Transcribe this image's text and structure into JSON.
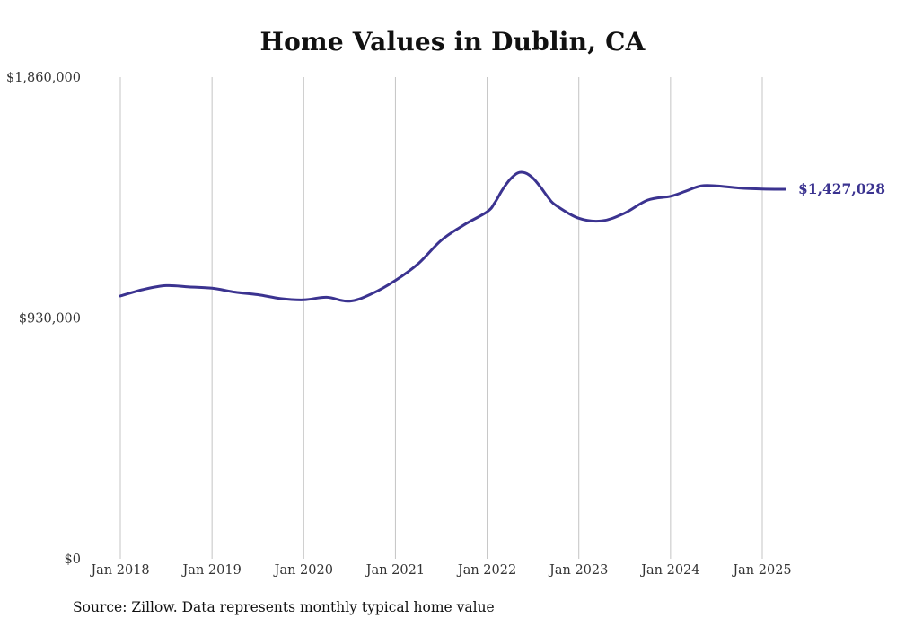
{
  "source_note": "Source: Zillow. Data represents monthly typical home value",
  "chart_data": {
    "type": "line",
    "title": "Home Values in Dublin, CA",
    "xlabel": "",
    "ylabel": "",
    "ylim": [
      0,
      1860000
    ],
    "y_ticks": [
      {
        "value": 0,
        "label": "$0"
      },
      {
        "value": 930000,
        "label": "$930,000"
      },
      {
        "value": 1860000,
        "label": "$1,860,000"
      }
    ],
    "x_ticks": [
      {
        "date": "2018-01",
        "label": "Jan 2018"
      },
      {
        "date": "2019-01",
        "label": "Jan 2019"
      },
      {
        "date": "2020-01",
        "label": "Jan 2020"
      },
      {
        "date": "2021-01",
        "label": "Jan 2021"
      },
      {
        "date": "2022-01",
        "label": "Jan 2022"
      },
      {
        "date": "2023-01",
        "label": "Jan 2023"
      },
      {
        "date": "2024-01",
        "label": "Jan 2024"
      },
      {
        "date": "2025-01",
        "label": "Jan 2025"
      }
    ],
    "grid": "vertical",
    "line_color": "#3b3390",
    "end_label": "$1,427,028",
    "series": [
      {
        "x": [
          "2018-01",
          "2018-04",
          "2018-07",
          "2018-10",
          "2019-01",
          "2019-04",
          "2019-07",
          "2019-10",
          "2020-01",
          "2020-04",
          "2020-07",
          "2020-10",
          "2021-01",
          "2021-04",
          "2021-07",
          "2021-10",
          "2022-01",
          "2022-02",
          "2022-03",
          "2022-04",
          "2022-05",
          "2022-06",
          "2022-07",
          "2022-08",
          "2022-09",
          "2022-10",
          "2023-01",
          "2023-04",
          "2023-07",
          "2023-10",
          "2024-01",
          "2024-03",
          "2024-05",
          "2024-07",
          "2024-10",
          "2025-01",
          "2025-04"
        ],
        "values": [
          1015000,
          1040000,
          1055000,
          1050000,
          1045000,
          1030000,
          1020000,
          1005000,
          1000000,
          1010000,
          995000,
          1025000,
          1075000,
          1140000,
          1230000,
          1290000,
          1340000,
          1375000,
          1425000,
          1465000,
          1490000,
          1490000,
          1470000,
          1435000,
          1395000,
          1365000,
          1315000,
          1305000,
          1335000,
          1385000,
          1400000,
          1420000,
          1440000,
          1440000,
          1432000,
          1428000,
          1427028
        ]
      }
    ]
  }
}
